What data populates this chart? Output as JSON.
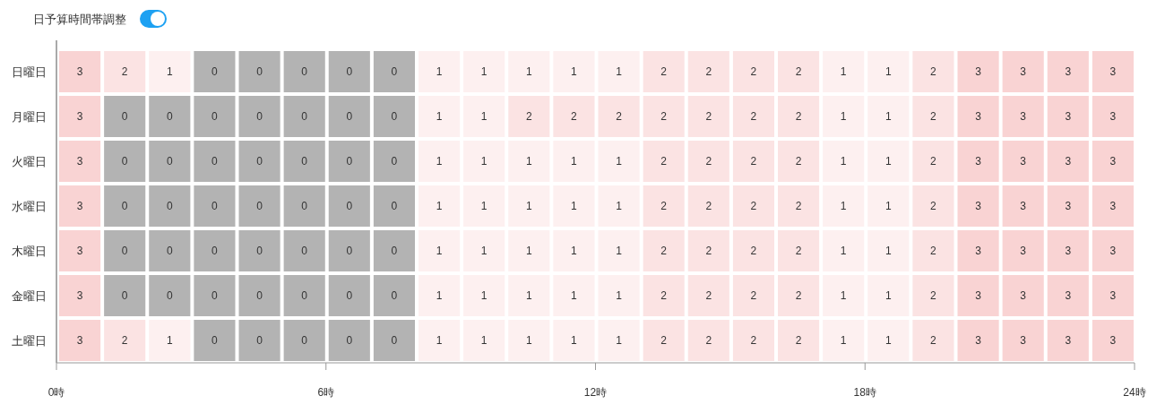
{
  "chart_data": {
    "type": "heatmap",
    "annotations": [
      "日予算時間帯調整"
    ],
    "x": [
      0.5,
      1.5,
      2.5,
      3.5,
      4.5,
      5.5,
      6.5,
      7.5,
      8.5,
      9.5,
      10.5,
      11.5,
      12.5,
      13.5,
      14.5,
      15.5,
      16.5,
      17.5,
      18.5,
      19.5,
      20.5,
      21.5,
      22.5,
      23.5
    ],
    "legend": false,
    "y_categories": [
      "日曜日",
      "月曜日",
      "火曜日",
      "水曜日",
      "木曜日",
      "金曜日",
      "土曜日"
    ],
    "xlim": [
      0,
      24
    ],
    "xticks": [
      {
        "value": 0,
        "label": "0時"
      },
      {
        "value": 6,
        "label": "6時"
      },
      {
        "value": 12,
        "label": "12時"
      },
      {
        "value": 18,
        "label": "18時"
      },
      {
        "value": 24,
        "label": "24時"
      }
    ],
    "colors": [
      "#b3b3b3",
      "#fdf0f0",
      "#fbe3e3",
      "#f9d3d3"
    ],
    "data_labels": true,
    "cells": [
      [
        3,
        2,
        1,
        0,
        0,
        0,
        0,
        0,
        1,
        1,
        1,
        1,
        1,
        2,
        2,
        2,
        2,
        1,
        1,
        2,
        3,
        3,
        3,
        3
      ],
      [
        3,
        0,
        0,
        0,
        0,
        0,
        0,
        0,
        1,
        1,
        2,
        2,
        2,
        2,
        2,
        2,
        2,
        1,
        1,
        2,
        3,
        3,
        3,
        3
      ],
      [
        3,
        0,
        0,
        0,
        0,
        0,
        0,
        0,
        1,
        1,
        1,
        1,
        1,
        2,
        2,
        2,
        2,
        1,
        1,
        2,
        3,
        3,
        3,
        3
      ],
      [
        3,
        0,
        0,
        0,
        0,
        0,
        0,
        0,
        1,
        1,
        1,
        1,
        1,
        2,
        2,
        2,
        2,
        1,
        1,
        2,
        3,
        3,
        3,
        3
      ],
      [
        3,
        0,
        0,
        0,
        0,
        0,
        0,
        0,
        1,
        1,
        1,
        1,
        1,
        2,
        2,
        2,
        2,
        1,
        1,
        2,
        3,
        3,
        3,
        3
      ],
      [
        3,
        0,
        0,
        0,
        0,
        0,
        0,
        0,
        1,
        1,
        1,
        1,
        1,
        2,
        2,
        2,
        2,
        1,
        1,
        2,
        3,
        3,
        3,
        3
      ],
      [
        3,
        2,
        1,
        0,
        0,
        0,
        0,
        0,
        1,
        1,
        1,
        1,
        1,
        2,
        2,
        2,
        2,
        1,
        1,
        2,
        3,
        3,
        3,
        3
      ]
    ]
  }
}
